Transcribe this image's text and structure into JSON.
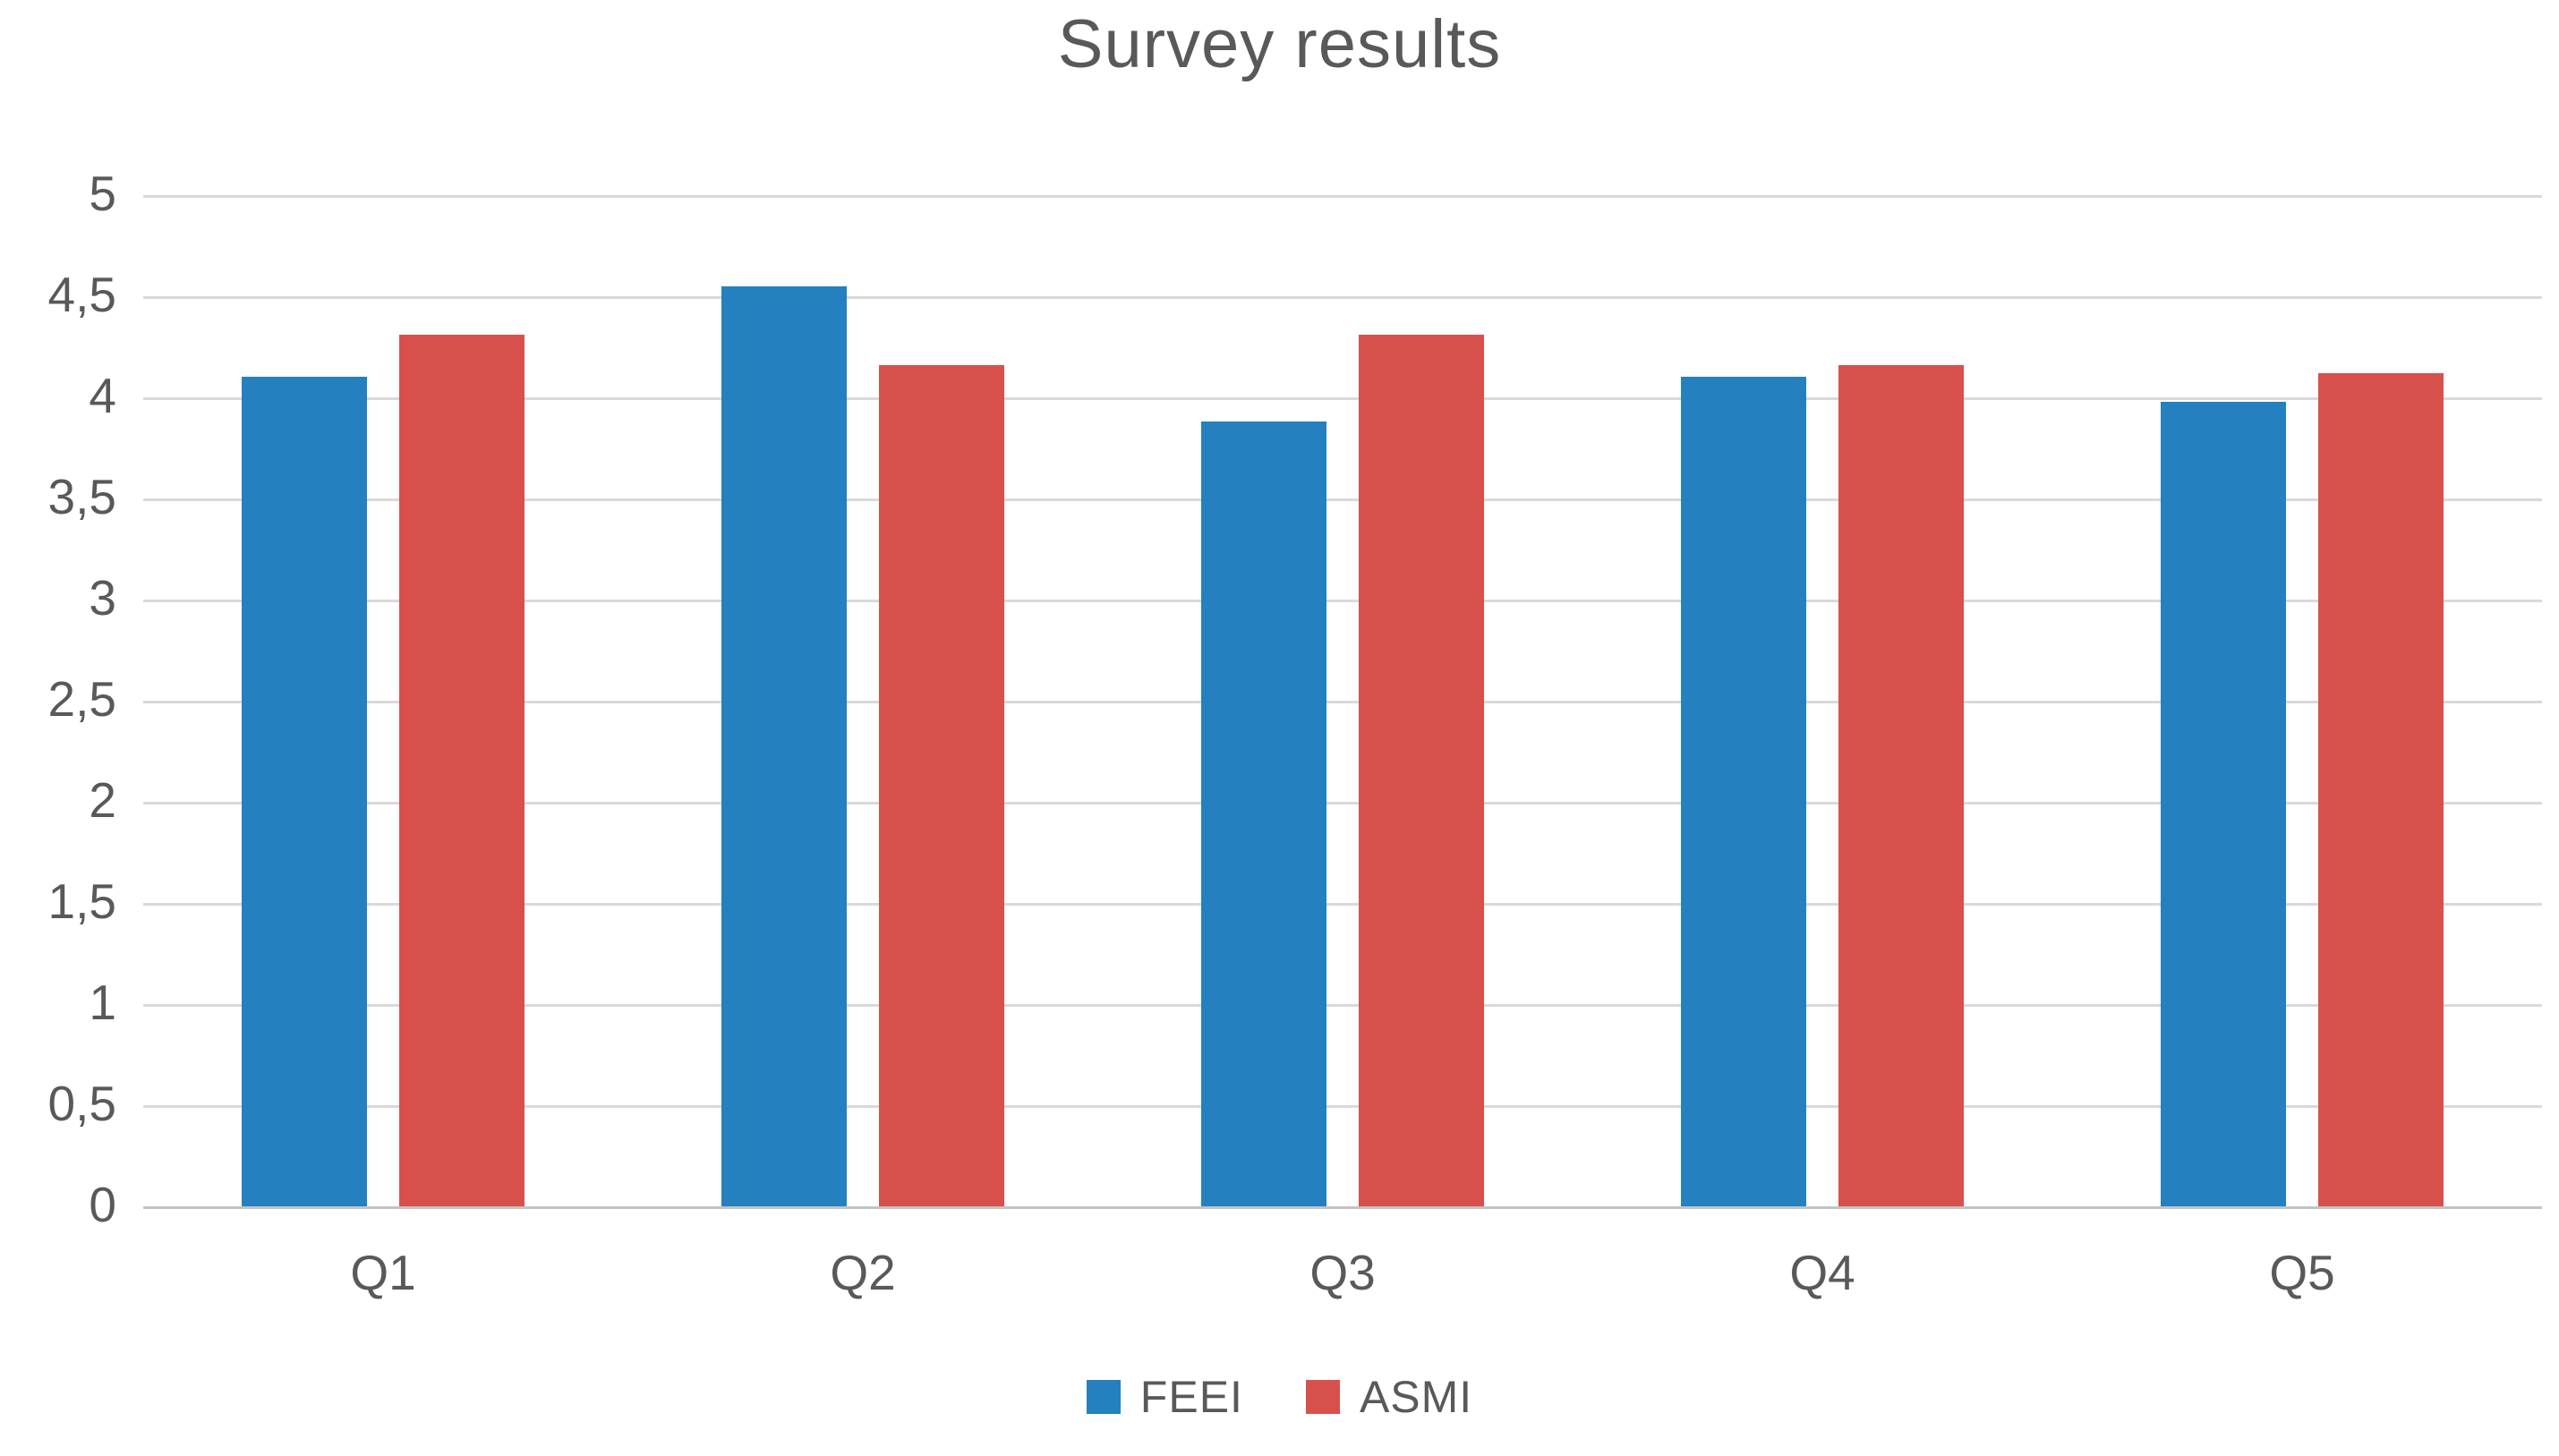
{
  "chart_data": {
    "type": "bar",
    "title": "Survey results",
    "categories": [
      "Q1",
      "Q2",
      "Q3",
      "Q4",
      "Q5"
    ],
    "series": [
      {
        "name": "FEEI",
        "color": "#2580BF",
        "values": [
          4.1,
          4.55,
          3.88,
          4.1,
          3.98
        ]
      },
      {
        "name": "ASMI",
        "color": "#D8504C",
        "values": [
          4.31,
          4.16,
          4.31,
          4.16,
          4.12
        ]
      }
    ],
    "xlabel": "",
    "ylabel": "",
    "ylim": [
      0,
      5
    ],
    "y_tick_step": 0.5,
    "y_tick_labels": [
      "0",
      "0,5",
      "1",
      "1,5",
      "2",
      "2,5",
      "3",
      "3,5",
      "4",
      "4,5",
      "5"
    ],
    "grid": true,
    "gridline_color": "#D9D9D9",
    "axis_line_color": "#C3C3C3",
    "text_color": "#595959",
    "background_color": "#FFFFFF",
    "legend_position": "bottom"
  }
}
